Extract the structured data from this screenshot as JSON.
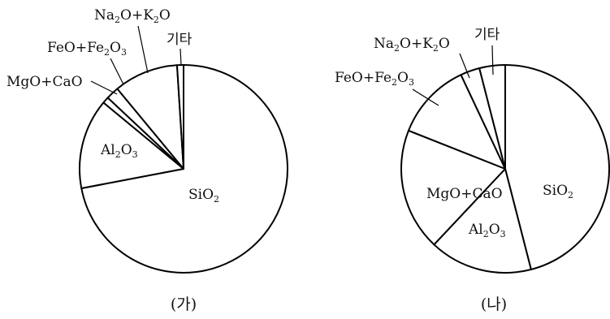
{
  "chart_data": [
    {
      "type": "pie",
      "caption": "(가)",
      "labels": {
        "sio2": {
          "main": "SiO",
          "sub": "2"
        },
        "al2o3": {
          "pre": "Al",
          "s1": "2",
          "mid": "O",
          "s2": "3"
        },
        "mgocao": {
          "text": "MgO+CaO"
        },
        "feo": {
          "pre": "FeO+Fe",
          "s1": "2",
          "mid": "O",
          "s2": "3"
        },
        "na2o": {
          "pre": "Na",
          "s1": "2",
          "mid": "O+K",
          "s2": "2",
          "post": "O"
        },
        "etc": {
          "text": "기타"
        }
      },
      "slices": [
        {
          "key": "sio2",
          "value": 72.0
        },
        {
          "key": "al2o3",
          "value": 14.0
        },
        {
          "key": "mgocao",
          "value": 1.0
        },
        {
          "key": "feo",
          "value": 2.0
        },
        {
          "key": "na2o",
          "value": 10.0
        },
        {
          "key": "etc",
          "value": 1.0
        }
      ]
    },
    {
      "type": "pie",
      "caption": "(나)",
      "labels": {
        "sio2": {
          "main": "SiO",
          "sub": "2"
        },
        "al2o3": {
          "pre": "Al",
          "s1": "2",
          "mid": "O",
          "s2": "3"
        },
        "mgocao": {
          "text": "MgO+CaO"
        },
        "feo": {
          "pre": "FeO+Fe",
          "s1": "2",
          "mid": "O",
          "s2": "3"
        },
        "na2o": {
          "pre": "Na",
          "s1": "2",
          "mid": "O+K",
          "s2": "2",
          "post": "O"
        },
        "etc": {
          "text": "기타"
        }
      },
      "slices": [
        {
          "key": "sio2",
          "value": 46.0
        },
        {
          "key": "al2o3",
          "value": 16.0
        },
        {
          "key": "mgocao",
          "value": 19.0
        },
        {
          "key": "feo",
          "value": 12.0
        },
        {
          "key": "na2o",
          "value": 3.0
        },
        {
          "key": "etc",
          "value": 4.0
        }
      ]
    }
  ]
}
